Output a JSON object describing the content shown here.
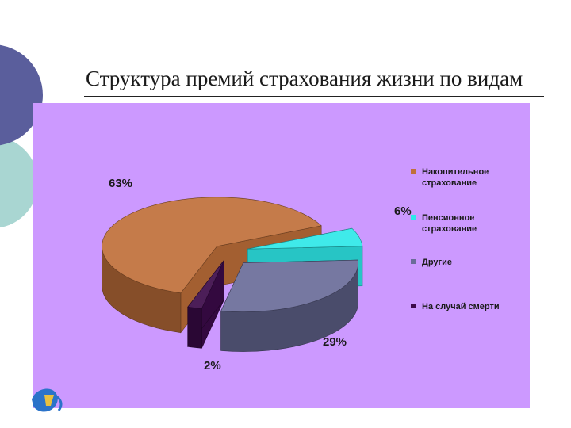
{
  "slide": {
    "title": "Структура премий  страхования жизни по видам"
  },
  "colors": {
    "panel": "#cc99ff",
    "deco_dark": "#5a5e9c",
    "deco_light": "#a9d6d2"
  },
  "chart_data": {
    "type": "pie",
    "style": "3d-exploded",
    "legend_position": "right",
    "slices": [
      {
        "name": "Накопительное страхование",
        "value": 63,
        "label": "63%",
        "color": "#c0703a"
      },
      {
        "name": "Пенсионное страхование",
        "value": 6,
        "label": "6%",
        "color": "#2ee8e8"
      },
      {
        "name": "Другие",
        "value": 29,
        "label": "29%",
        "color": "#6a6c99"
      },
      {
        "name": "На случай смерти",
        "value": 2,
        "label": "2%",
        "color": "#3c0a4a"
      }
    ]
  }
}
